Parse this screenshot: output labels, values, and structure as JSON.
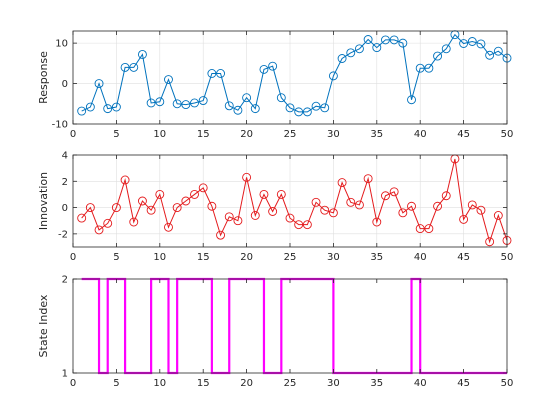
{
  "chart_data": [
    {
      "type": "line",
      "ylabel": "Response",
      "xlim": [
        0,
        50
      ],
      "ylim": [
        -10,
        13
      ],
      "xticks": [
        0,
        5,
        10,
        15,
        20,
        25,
        30,
        35,
        40,
        45,
        50
      ],
      "yticks": [
        -10,
        0,
        10
      ],
      "grid": true,
      "color": "#0072BD",
      "marker": "circle",
      "x": [
        1,
        2,
        3,
        4,
        5,
        6,
        7,
        8,
        9,
        10,
        11,
        12,
        13,
        14,
        15,
        16,
        17,
        18,
        19,
        20,
        21,
        22,
        23,
        24,
        25,
        26,
        27,
        28,
        29,
        30,
        31,
        32,
        33,
        34,
        35,
        36,
        37,
        38,
        39,
        40,
        41,
        42,
        43,
        44,
        45,
        46,
        47,
        48,
        49,
        50
      ],
      "values": [
        -6.8,
        -5.8,
        0.0,
        -6.2,
        -5.8,
        4.0,
        4.0,
        7.2,
        -4.8,
        -4.5,
        1.0,
        -5.0,
        -5.2,
        -4.8,
        -4.2,
        2.5,
        2.5,
        -5.5,
        -6.6,
        -3.5,
        -6.2,
        3.5,
        4.3,
        -3.5,
        -6.0,
        -7.0,
        -7.0,
        -5.6,
        -6.0,
        1.9,
        6.2,
        7.6,
        8.6,
        10.9,
        8.9,
        10.8,
        10.8,
        10.0,
        -4.0,
        3.8,
        3.8,
        6.8,
        8.6,
        12.1,
        9.9,
        10.4,
        9.8,
        7.0,
        8.0,
        6.3
      ]
    },
    {
      "type": "line",
      "ylabel": "Innovation",
      "xlim": [
        0,
        50
      ],
      "ylim": [
        -3,
        4
      ],
      "xticks": [
        0,
        5,
        10,
        15,
        20,
        25,
        30,
        35,
        40,
        45,
        50
      ],
      "yticks": [
        -2,
        0,
        2,
        4
      ],
      "grid": true,
      "color": "#E41A1C",
      "marker": "circle",
      "x": [
        1,
        2,
        3,
        4,
        5,
        6,
        7,
        8,
        9,
        10,
        11,
        12,
        13,
        14,
        15,
        16,
        17,
        18,
        19,
        20,
        21,
        22,
        23,
        24,
        25,
        26,
        27,
        28,
        29,
        30,
        31,
        32,
        33,
        34,
        35,
        36,
        37,
        38,
        39,
        40,
        41,
        42,
        43,
        44,
        45,
        46,
        47,
        48,
        49,
        50
      ],
      "values": [
        -0.8,
        0.0,
        -1.7,
        -1.2,
        0.0,
        2.1,
        -1.1,
        0.5,
        -0.2,
        1.0,
        -1.5,
        0.0,
        0.5,
        1.0,
        1.5,
        0.1,
        -2.1,
        -0.7,
        -1.0,
        2.3,
        -0.6,
        1.0,
        -0.3,
        1.0,
        -0.8,
        -1.3,
        -1.3,
        0.4,
        -0.2,
        -0.4,
        1.9,
        0.4,
        0.2,
        2.2,
        -1.1,
        0.9,
        1.2,
        -0.4,
        0.1,
        -1.6,
        -1.6,
        0.1,
        0.9,
        3.7,
        -0.9,
        0.2,
        -0.2,
        -2.6,
        -0.6,
        -2.5
      ]
    },
    {
      "type": "line",
      "step": true,
      "ylabel": "State Index",
      "xlim": [
        0,
        50
      ],
      "ylim": [
        1,
        2
      ],
      "xticks": [
        0,
        5,
        10,
        15,
        20,
        25,
        30,
        35,
        40,
        45,
        50
      ],
      "yticks": [
        1,
        2
      ],
      "grid": false,
      "color": "#FF00FF",
      "x": [
        1,
        2,
        3,
        4,
        5,
        6,
        7,
        8,
        9,
        10,
        11,
        12,
        13,
        14,
        15,
        16,
        17,
        18,
        19,
        20,
        21,
        22,
        23,
        24,
        25,
        26,
        27,
        28,
        29,
        30,
        31,
        32,
        33,
        34,
        35,
        36,
        37,
        38,
        39,
        40,
        41,
        42,
        43,
        44,
        45,
        46,
        47,
        48,
        49,
        50
      ],
      "values": [
        2,
        2,
        1,
        2,
        2,
        1,
        1,
        1,
        2,
        2,
        1,
        2,
        2,
        2,
        2,
        1,
        1,
        2,
        2,
        2,
        2,
        1,
        1,
        2,
        2,
        2,
        2,
        2,
        2,
        1,
        1,
        1,
        1,
        1,
        1,
        1,
        1,
        1,
        2,
        1,
        1,
        1,
        1,
        1,
        1,
        1,
        1,
        1,
        1,
        1
      ]
    }
  ]
}
